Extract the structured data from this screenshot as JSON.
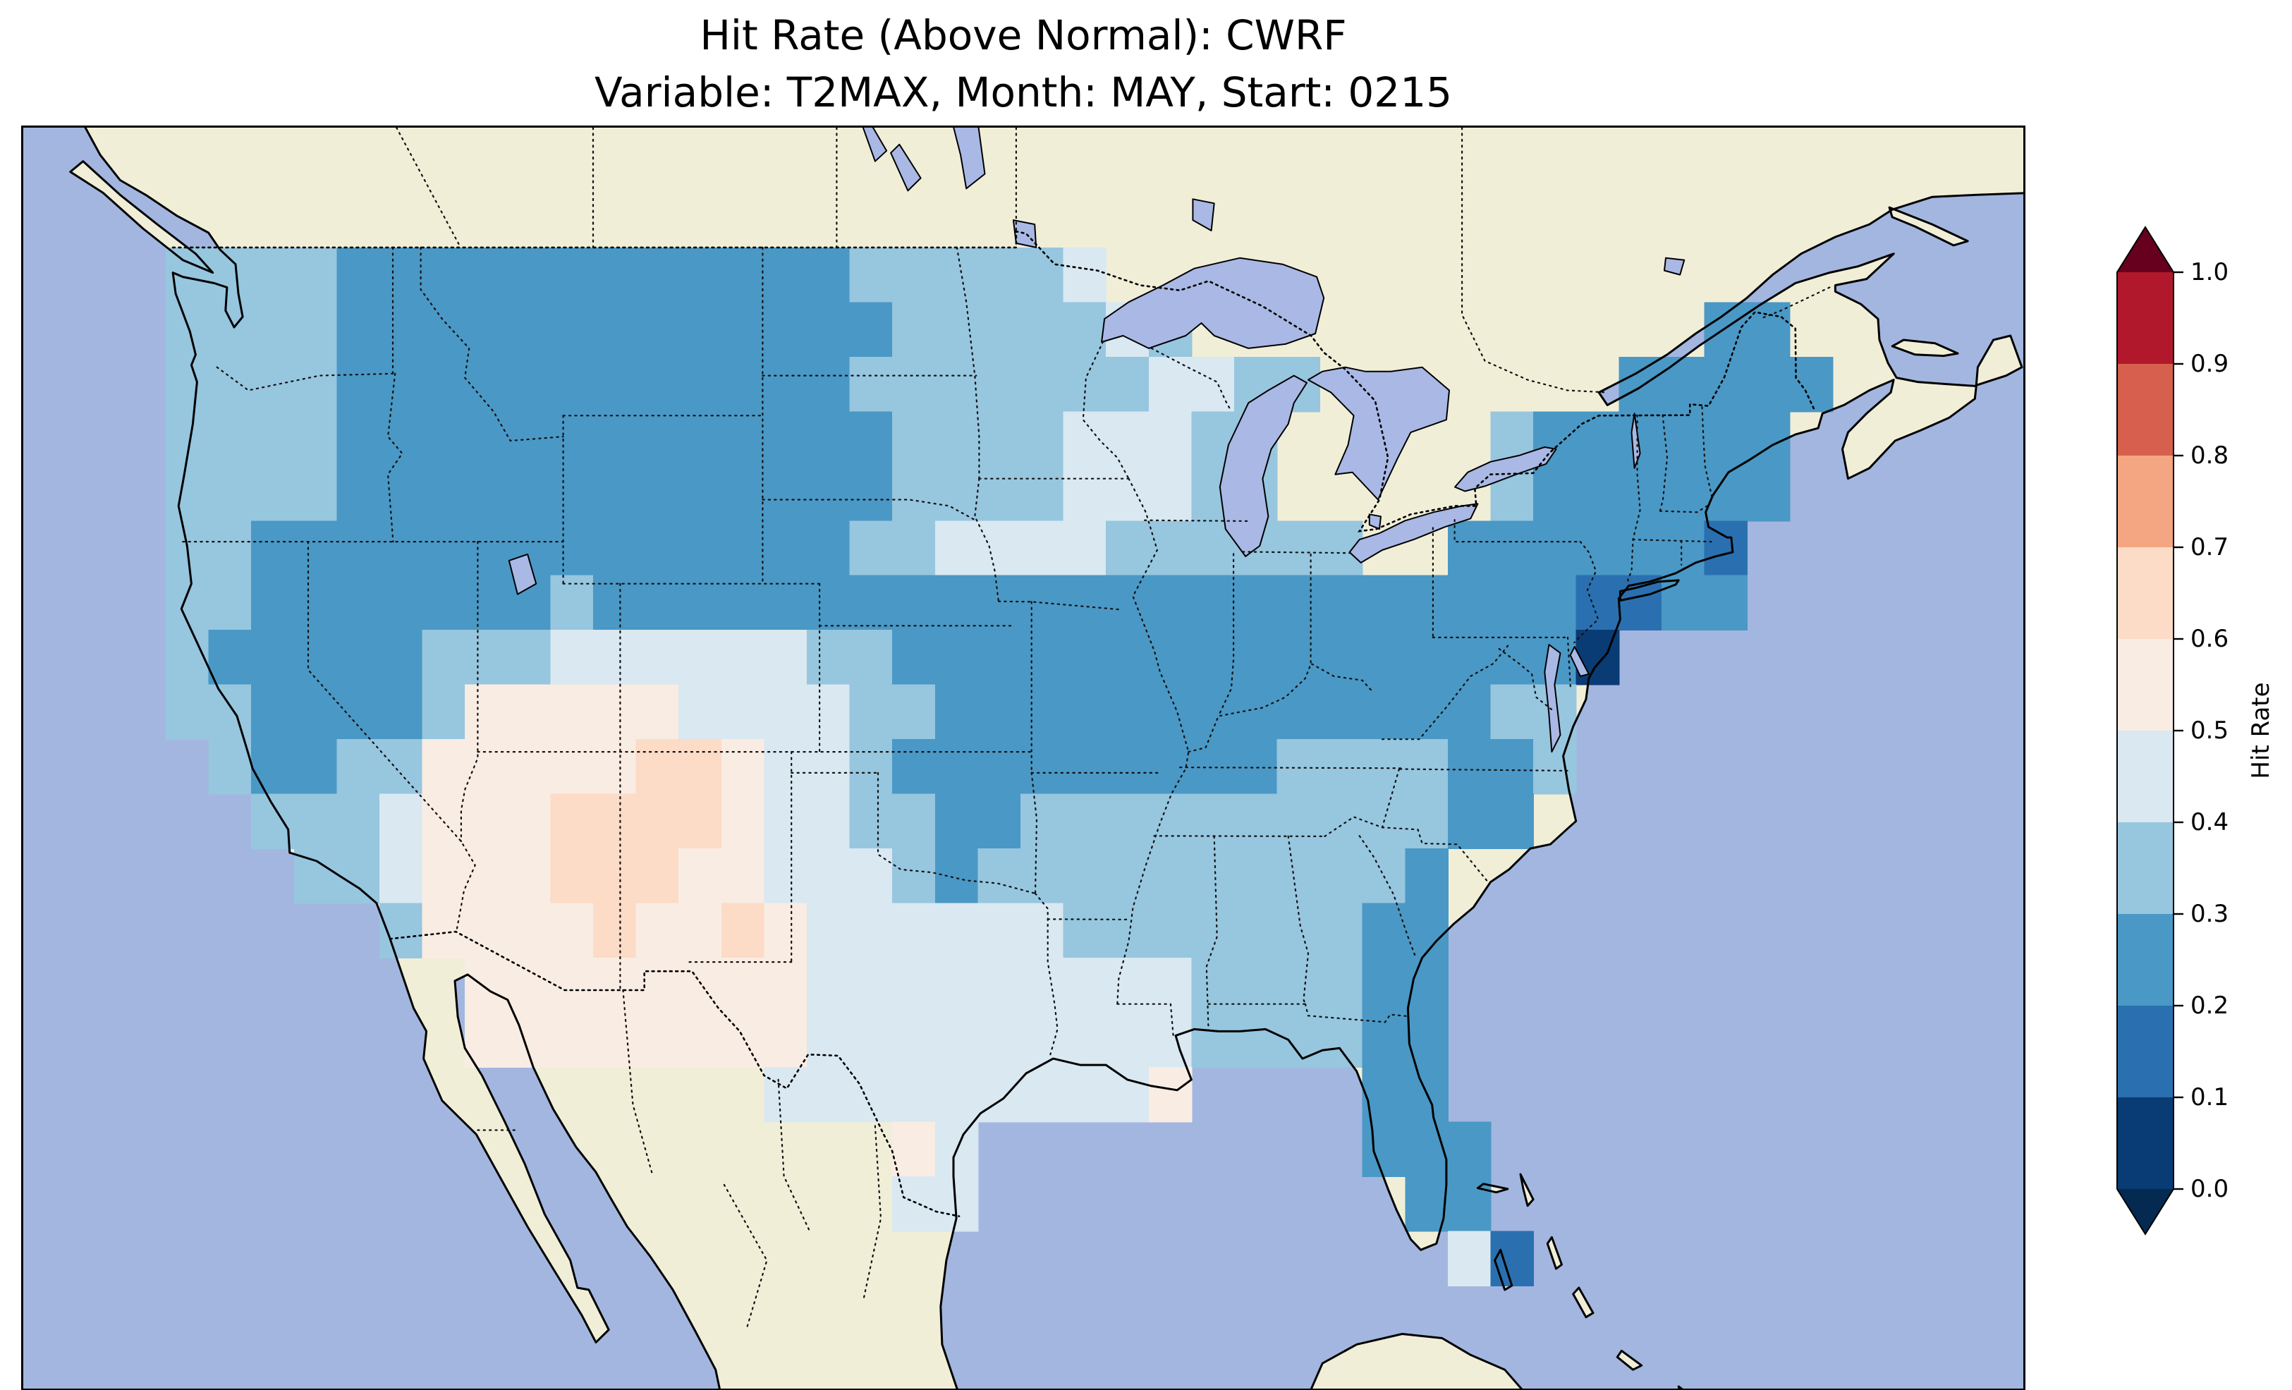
{
  "figure": {
    "title_line1": "Hit Rate (Above Normal): CWRF",
    "title_line2": "Variable: T2MAX, Month: MAY, Start: 0215"
  },
  "colorbar": {
    "label": "Hit Rate",
    "tick_labels": [
      "1.0",
      "0.9",
      "0.8",
      "0.7",
      "0.6",
      "0.5",
      "0.4",
      "0.3",
      "0.2",
      "0.1",
      "0.0"
    ],
    "bin_colors_low_to_high": [
      "#093c74",
      "#2a70b0",
      "#4a98c5",
      "#97c6df",
      "#d9e8f1",
      "#f9ece3",
      "#fcdbc7",
      "#f4a582",
      "#d6604d",
      "#b2182b"
    ],
    "under_color": "#042a52",
    "over_color": "#67001f"
  },
  "map_colors": {
    "ocean": "#a3b6e0",
    "land": "#f1eed8",
    "lakes": "#a9b8e4",
    "coastline": "#000000",
    "borders": "#000000"
  },
  "chart_data": {
    "type": "heatmap",
    "title": "Hit Rate (Above Normal): CWRF",
    "subtitle": "Variable: T2MAX, Month: MAY, Start: 0215",
    "metric": "Hit Rate (Above Normal)",
    "model": "CWRF",
    "variable": "T2MAX",
    "month": "MAY",
    "start": "0215",
    "region": "Contiguous United States",
    "colorbar_label": "Hit Rate",
    "value_range": [
      0.0,
      1.0
    ],
    "bin_size": 0.1,
    "colorbar_extends": "both",
    "legend_position": "right",
    "projection_extent": {
      "lon": [
        -130.0,
        -59.8
      ],
      "lat": [
        21.85,
        51.85
      ]
    },
    "grid": {
      "legend": "Each char is one grid cell: digit d = hit-rate bin (value is approx 0.05 + 0.1*d), '.' = no data (outside CONUS)",
      "lon_west": -125.0,
      "cell_lon_deg": 1.5,
      "lat_north": 49.0,
      "cell_lat_deg": 1.3,
      "rows_north_to_south": [
        "3333222222222222333334..................",
        "33332222222222222333 3343............22..",
        "333322222222222233333334433.......22222.",
        "3333222222222222 2333344433.....3222222..",
        "33332222222222222333344433.....3222222..",
        "332222222222222233444433 3333..2222221...",
        "33222222232222222222 2222222222 2221122...",
        "322222333444444 33222222222222 2 2220......",
        "3322223555554444 3322 2222222222 233.......",
        ".32233555556654432 222222223333223.......",
        "..333455566665443322333333333322........",
        "...33455566655444323 3333333332..........",
        ".....3555565565444444333333322..........",
        ".......5555555544444 4444333322..........",
        ".......5555555544444 4444333322..........",
        "..............444444 4445....22..........",
        ".................54.........222.........",
        ".................44..........22.........",
        "..............................41........."
      ]
    }
  }
}
